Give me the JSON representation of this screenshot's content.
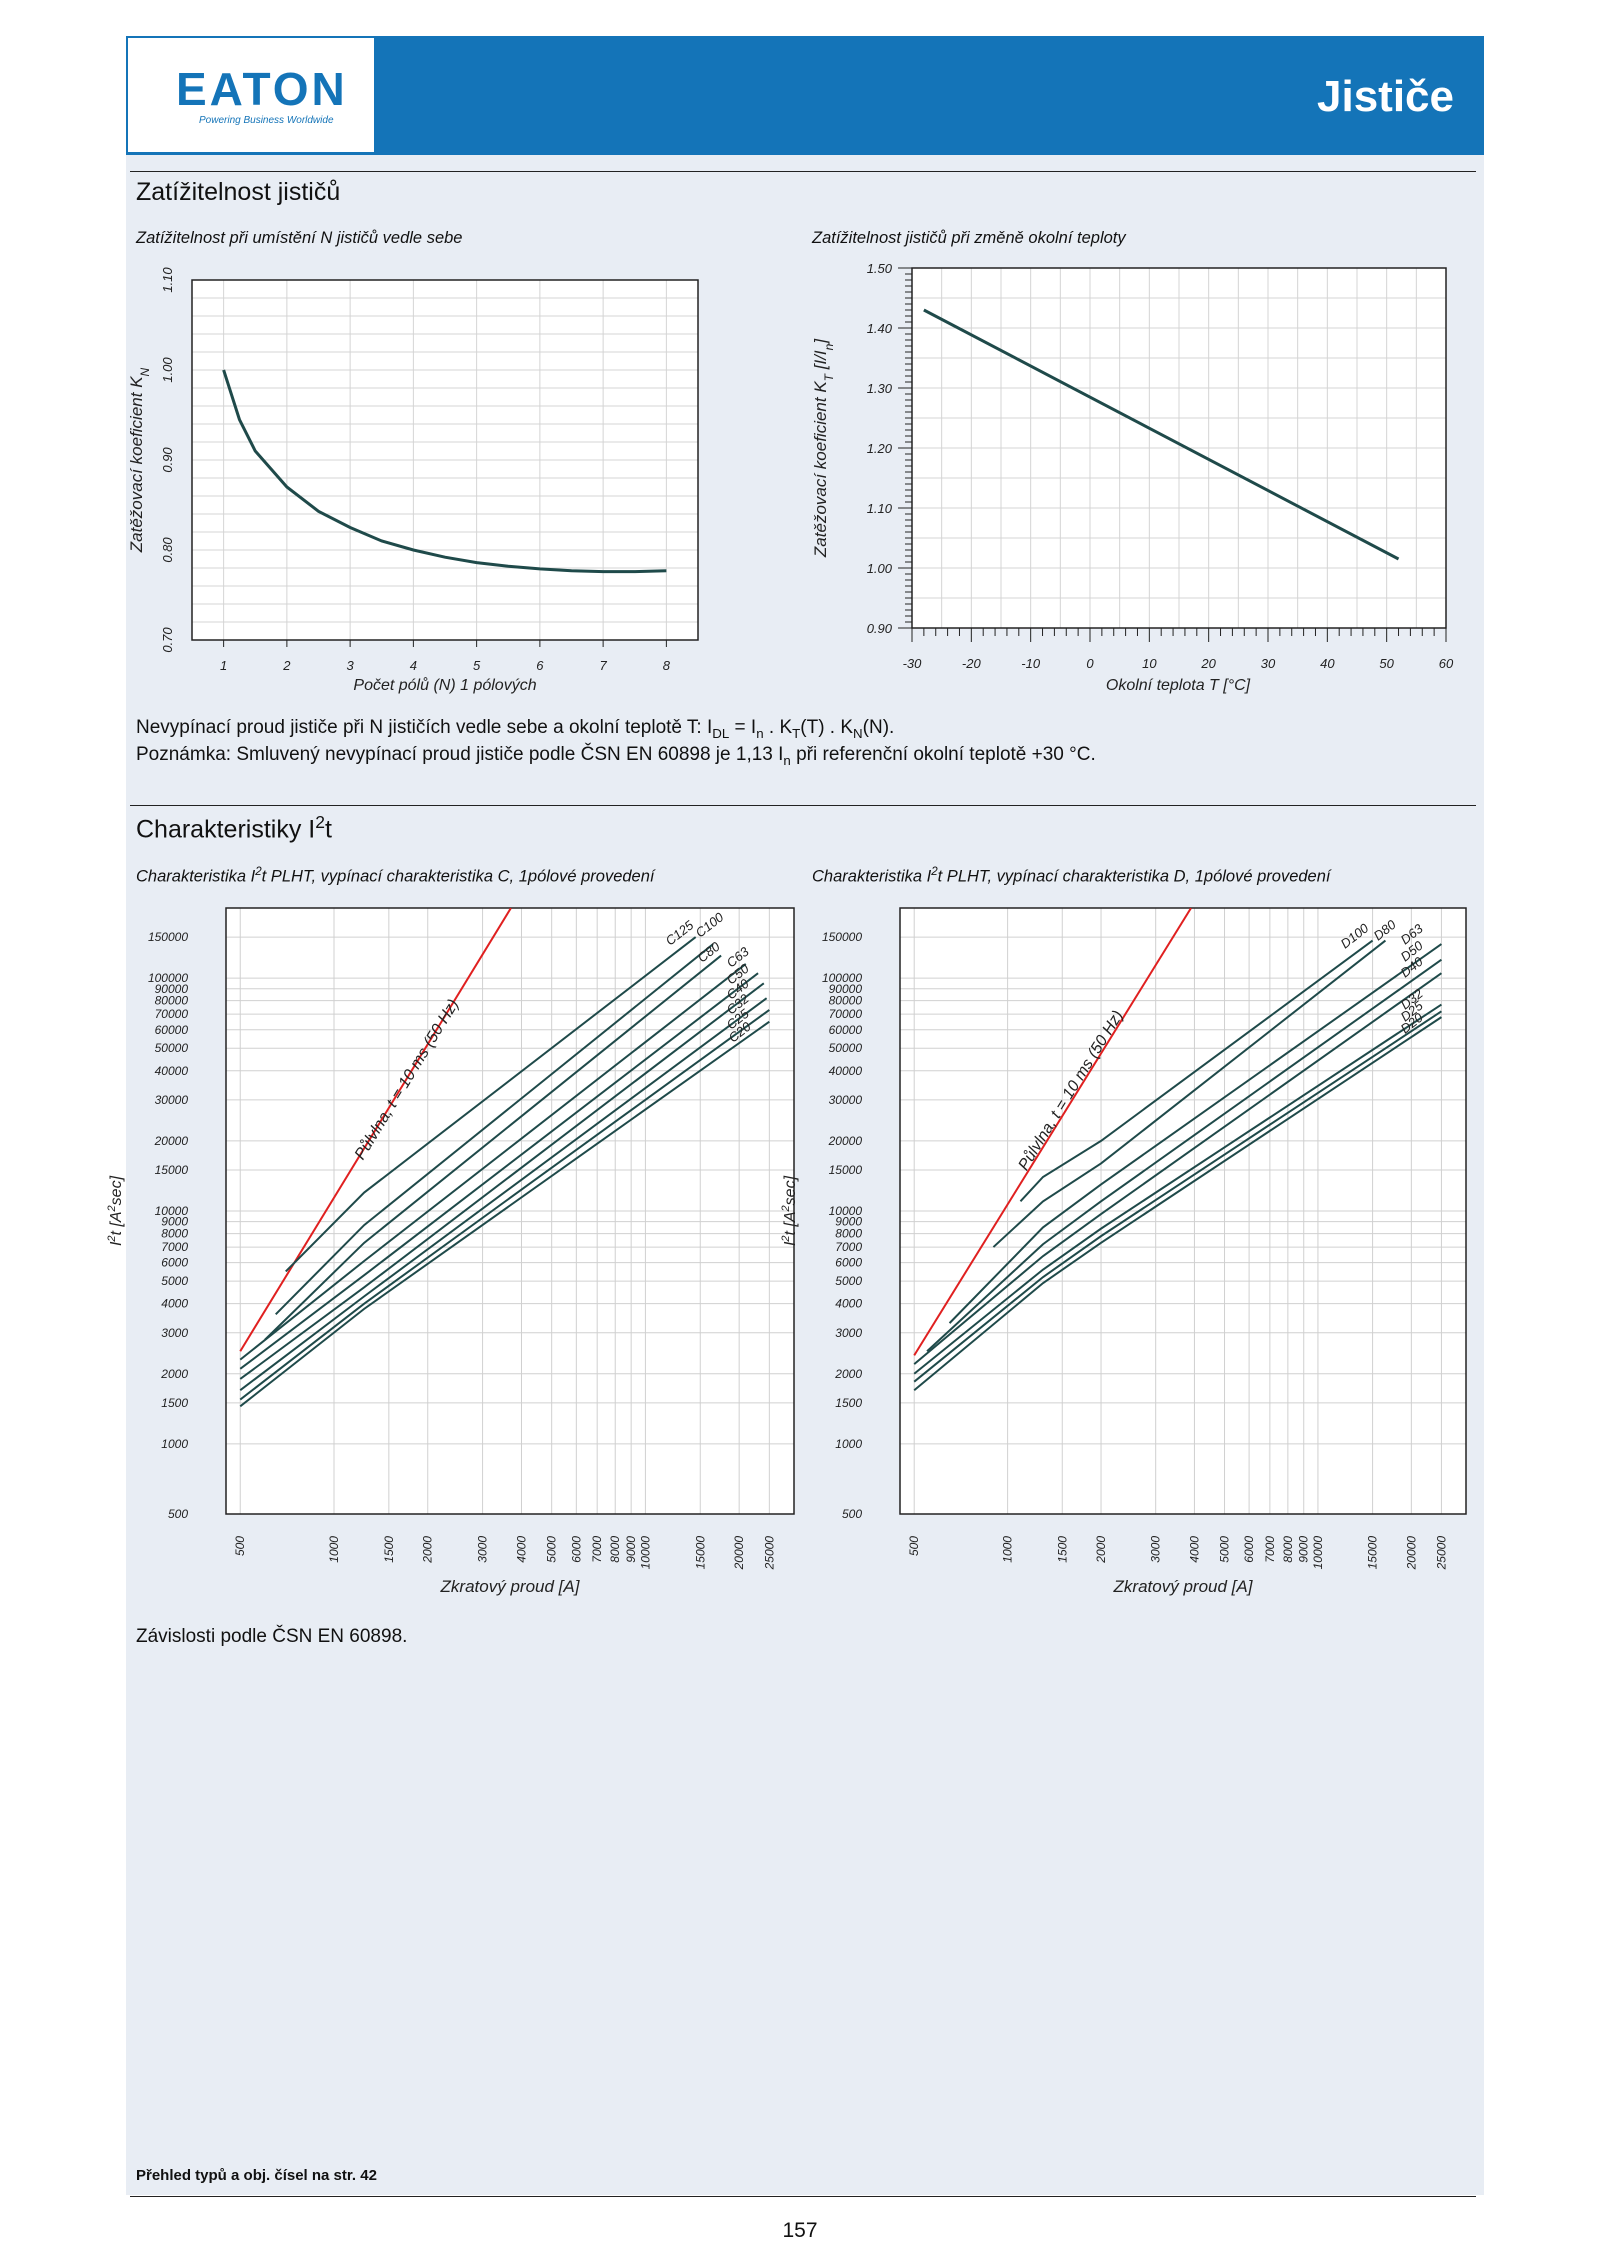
{
  "header": {
    "logo_text": "EATON",
    "logo_tagline": "Powering Business Worldwide",
    "title": "Jističe",
    "colors": {
      "brand_blue": "#1474b8",
      "panel": "#e8edf4",
      "curve": "#1f4a4a",
      "half_wave": "#e02020"
    }
  },
  "section1": {
    "title": "Zatížitelnost jističů",
    "subtitle_left": "Zatížitelnost při umístění N jističů vedle sebe",
    "subtitle_right": "Zatížitelnost jističů při změně okolní teploty",
    "formula_prefix": "Nevypínací proud jističe při N jističích vedle sebe a okolní teplotě T: I",
    "formula_sub_dl": "DL",
    "formula_eq": " = I",
    "formula_sub_n": "n",
    "formula_mid": " . K",
    "formula_sub_t": "T",
    "formula_mid2": "(T) . K",
    "formula_sub_nn": "N",
    "formula_end": "(N).",
    "note_prefix": "Poznámka: Smluvený nevypínací proud jističe podle ČSN EN 60898 je 1,13 I",
    "note_sub": "n",
    "note_end": " při referenční okolní teplotě +30 °C."
  },
  "section2": {
    "title_main": "Charakteristiky I",
    "title_sup": "2",
    "title_end": "t",
    "subtitle_left_a": "Charakteristika I",
    "subtitle_left_sup": "2",
    "subtitle_left_b": "t PLHT, vypínací charakteristika C, 1pólové provedení",
    "subtitle_right_a": "Charakteristika I",
    "subtitle_right_sup": "2",
    "subtitle_right_b": "t PLHT, vypínací charakteristika D, 1pólové provedení",
    "dependency_text": "Závislosti podle ČSN EN 60898."
  },
  "footer": {
    "note": "Přehled typů a obj. čísel na str. 42",
    "page_number": "157"
  },
  "chart_data": [
    {
      "type": "line",
      "xlabel": "Počet pólů (N) 1 pólových",
      "ylabel_main": "Zatěžovací koeficient K",
      "ylabel_sub": "N",
      "xlim": [
        0.5,
        8.5
      ],
      "ylim": [
        0.7,
        1.1
      ],
      "xticks": [
        1,
        2,
        3,
        4,
        5,
        6,
        7,
        8
      ],
      "yticks": [
        "0.70",
        "0.80",
        "0.90",
        "1.00",
        "1.10"
      ],
      "grid": true,
      "series": [
        {
          "x": [
            1,
            1.25,
            1.5,
            2,
            2.5,
            3,
            3.5,
            4,
            4.5,
            5,
            5.5,
            6,
            6.5,
            7,
            7.5,
            8
          ],
          "y": [
            1.0,
            0.945,
            0.91,
            0.87,
            0.843,
            0.825,
            0.81,
            0.8,
            0.792,
            0.786,
            0.782,
            0.779,
            0.777,
            0.776,
            0.776,
            0.777
          ]
        }
      ]
    },
    {
      "type": "line",
      "xlabel": "Okolní teplota T [°C]",
      "ylabel_main": "Zatěžovací koeficient K",
      "ylabel_sub": "T",
      "ylabel_end": " [I/I",
      "ylabel_sub2": "n",
      "ylabel_close": "]",
      "xlim": [
        -30,
        60
      ],
      "ylim": [
        0.9,
        1.5
      ],
      "xticks": [
        "-30",
        "-20",
        "-10",
        "0",
        "10",
        "20",
        "30",
        "40",
        "50",
        "60"
      ],
      "yticks": [
        "0.90",
        "1.00",
        "1.10",
        "1.20",
        "1.30",
        "1.40",
        "1.50"
      ],
      "grid": true,
      "series": [
        {
          "x": [
            -28,
            52
          ],
          "y": [
            1.43,
            1.015
          ]
        }
      ]
    },
    {
      "type": "line",
      "scale": "log-log",
      "xlabel": "Zkratový proud [A]",
      "ylabel_main": "I",
      "ylabel_sup": "2",
      "ylabel_end": "t [A",
      "ylabel_sup2": "2",
      "ylabel_close": "sec]",
      "xlim": [
        450,
        30000
      ],
      "ylim": [
        500,
        200000
      ],
      "xticks": [
        "500",
        "1000",
        "1500",
        "2000",
        "3000",
        "4000",
        "5000",
        "6000",
        "7000",
        "8000",
        "9000",
        "10000",
        "15000",
        "20000",
        "25000"
      ],
      "yticks": [
        "500",
        "1000",
        "1500",
        "2000",
        "3000",
        "4000",
        "5000",
        "6000",
        "7000",
        "8000",
        "9000",
        "10000",
        "15000",
        "20000",
        "30000",
        "40000",
        "50000",
        "60000",
        "70000",
        "80000",
        "90000",
        "100000",
        "150000"
      ],
      "half_wave": {
        "label": "Půlvlna, t = 10 ms (50 Hz)",
        "x": [
          500,
          3700
        ],
        "y": [
          2500,
          200000
        ]
      },
      "series": [
        {
          "name": "C125",
          "x": [
            700,
            1250,
            14500
          ],
          "y": [
            5500,
            12000,
            150000
          ]
        },
        {
          "name": "C100",
          "x": [
            650,
            1250,
            16500
          ],
          "y": [
            3600,
            8700,
            140000
          ]
        },
        {
          "name": "C80",
          "x": [
            600,
            1250,
            17500
          ],
          "y": [
            2800,
            7300,
            125000
          ]
        },
        {
          "name": "C63",
          "x": [
            500,
            1250,
            21000
          ],
          "y": [
            2300,
            6100,
            115000
          ]
        },
        {
          "name": "C50",
          "x": [
            500,
            1250,
            23000
          ],
          "y": [
            2100,
            5300,
            105000
          ]
        },
        {
          "name": "C40",
          "x": [
            500,
            1250,
            24000
          ],
          "y": [
            1900,
            4700,
            95000
          ]
        },
        {
          "name": "C32",
          "x": [
            500,
            1250,
            24500
          ],
          "y": [
            1700,
            4300,
            82000
          ]
        },
        {
          "name": "C25",
          "x": [
            500,
            1250,
            25000
          ],
          "y": [
            1550,
            4000,
            73000
          ]
        },
        {
          "name": "C20",
          "x": [
            500,
            1250,
            25000
          ],
          "y": [
            1450,
            3800,
            65000
          ]
        }
      ]
    },
    {
      "type": "line",
      "scale": "log-log",
      "xlabel": "Zkratový proud [A]",
      "ylabel_main": "I",
      "ylabel_sup": "2",
      "ylabel_end": "t [A",
      "ylabel_sup2": "2",
      "ylabel_close": "sec]",
      "xlim": [
        450,
        30000
      ],
      "ylim": [
        500,
        200000
      ],
      "xticks": [
        "500",
        "1000",
        "1500",
        "2000",
        "3000",
        "4000",
        "5000",
        "6000",
        "7000",
        "8000",
        "9000",
        "10000",
        "15000",
        "20000",
        "25000"
      ],
      "yticks": [
        "500",
        "1000",
        "1500",
        "2000",
        "3000",
        "4000",
        "5000",
        "6000",
        "7000",
        "8000",
        "9000",
        "10000",
        "15000",
        "20000",
        "30000",
        "40000",
        "50000",
        "60000",
        "70000",
        "80000",
        "90000",
        "100000",
        "150000"
      ],
      "half_wave": {
        "label": "Půlvlna, t = 10 ms (50 Hz)",
        "x": [
          500,
          3900
        ],
        "y": [
          2400,
          200000
        ]
      },
      "series": [
        {
          "name": "D100",
          "x": [
            1100,
            1300,
            2000,
            15000
          ],
          "y": [
            11000,
            14000,
            20000,
            145000
          ]
        },
        {
          "name": "D80",
          "x": [
            900,
            1300,
            2000,
            16500
          ],
          "y": [
            7000,
            11000,
            16000,
            145000
          ]
        },
        {
          "name": "D63",
          "x": [
            650,
            1300,
            2000,
            25000
          ],
          "y": [
            3300,
            8500,
            13000,
            140000
          ]
        },
        {
          "name": "D50",
          "x": [
            550,
            1300,
            2000,
            25000
          ],
          "y": [
            2500,
            7200,
            11000,
            120000
          ]
        },
        {
          "name": "D40",
          "x": [
            500,
            1300,
            2000,
            25000
          ],
          "y": [
            2200,
            6400,
            9700,
            105000
          ]
        },
        {
          "name": "D32",
          "x": [
            500,
            1300,
            2000,
            25000
          ],
          "y": [
            2000,
            5600,
            8400,
            77000
          ]
        },
        {
          "name": "D25",
          "x": [
            500,
            1300,
            2000,
            25000
          ],
          "y": [
            1850,
            5200,
            7800,
            72000
          ]
        },
        {
          "name": "D20",
          "x": [
            500,
            1300,
            2000,
            25000
          ],
          "y": [
            1700,
            4900,
            7300,
            68000
          ]
        }
      ]
    }
  ]
}
